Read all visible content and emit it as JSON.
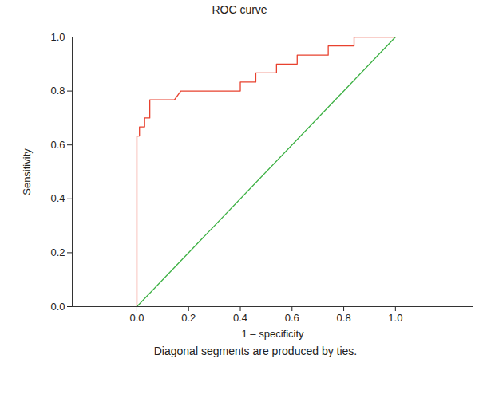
{
  "chart_data": {
    "type": "line",
    "title": "ROC curve",
    "caption": "Diagonal segments are produced by ties.",
    "x_label": "1 – specificity",
    "y_label": "Sensitivity",
    "xlim": [
      -0.25,
      1.3
    ],
    "ylim": [
      0,
      1
    ],
    "xticks": [
      {
        "value": 0,
        "label": "0.0"
      },
      {
        "value": 0.2,
        "label": "0.2"
      },
      {
        "value": 0.4,
        "label": "0.4"
      },
      {
        "value": 0.6,
        "label": "0.6"
      },
      {
        "value": 0.8,
        "label": "0.8"
      },
      {
        "value": 1,
        "label": "1.0"
      }
    ],
    "yticks": [
      {
        "value": 0,
        "label": "0.0"
      },
      {
        "value": 0.2,
        "label": "0.2"
      },
      {
        "value": 0.4,
        "label": "0.4"
      },
      {
        "value": 0.6,
        "label": "0.6"
      },
      {
        "value": 0.8,
        "label": "0.8"
      },
      {
        "value": 1,
        "label": "1.0"
      }
    ],
    "grid": false,
    "series": [
      {
        "color": "#e8412e",
        "x": [
          0,
          0,
          0.01,
          0.01,
          0.03,
          0.03,
          0.05,
          0.05,
          0.145,
          0.17,
          0.4,
          0.4,
          0.46,
          0.46,
          0.54,
          0.54,
          0.62,
          0.62,
          0.74,
          0.74,
          0.84,
          0.84,
          1.0
        ],
        "values": [
          0,
          0.633,
          0.633,
          0.667,
          0.667,
          0.7,
          0.7,
          0.767,
          0.767,
          0.8,
          0.8,
          0.833,
          0.833,
          0.867,
          0.867,
          0.9,
          0.9,
          0.933,
          0.933,
          0.967,
          0.967,
          1.0,
          1.0
        ]
      },
      {
        "color": "#3cb043",
        "x": [
          0,
          1
        ],
        "values": [
          0,
          1
        ]
      }
    ]
  }
}
